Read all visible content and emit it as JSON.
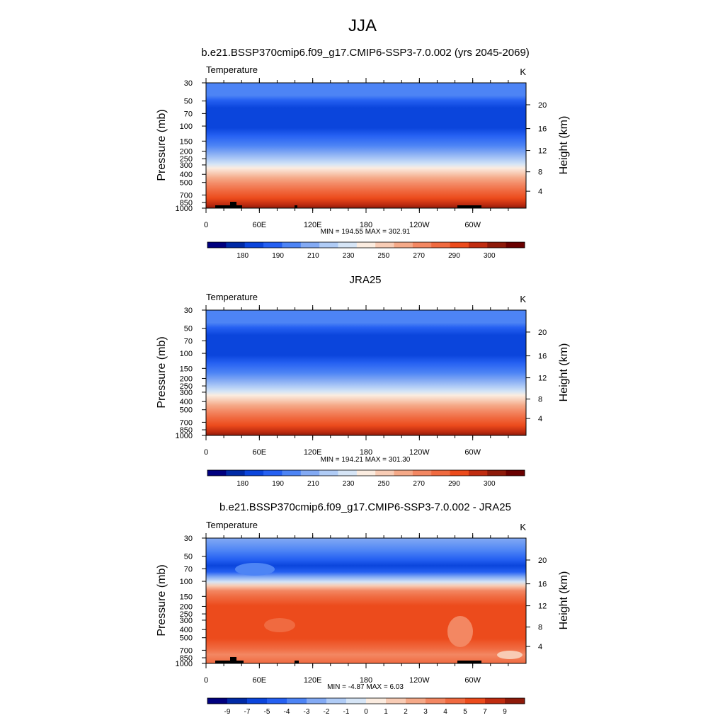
{
  "figure_title": "JJA",
  "chart_data": [
    {
      "type": "heatmap",
      "title": "b.e21.BSSP370cmip6.f09_g17.CMIP6-SSP3-7.0.002 (yrs 2045-2069)",
      "variable": "Temperature",
      "units": "K",
      "ylabel": "Pressure (mb)",
      "y2label": "Height (km)",
      "x_ticks": [
        "0",
        "60E",
        "120E",
        "180",
        "120W",
        "60W"
      ],
      "pressure_ticks": [
        "30",
        "50",
        "70",
        "100",
        "150",
        "200",
        "250",
        "300",
        "400",
        "500",
        "700",
        "850",
        "1000"
      ],
      "height_ticks": [
        "20",
        "16",
        "12",
        "8",
        "4"
      ],
      "stats": "MIN = 194.55  MAX = 302.91",
      "min": 194.55,
      "max": 302.91,
      "colorbar_labels": [
        "180",
        "190",
        "210",
        "230",
        "250",
        "270",
        "290",
        "300"
      ],
      "colorbar_colors": [
        "#00007f",
        "#002aa6",
        "#0b45dc",
        "#2560f2",
        "#4d84f5",
        "#83aaf4",
        "#b0ccf6",
        "#d6e5f6",
        "#fbece0",
        "#f8ccb5",
        "#f5a988",
        "#f38762",
        "#f06a40",
        "#ec4b1c",
        "#c02c10",
        "#8e1a0a",
        "#6a0000"
      ]
    },
    {
      "type": "heatmap",
      "title": "JRA25",
      "variable": "Temperature",
      "units": "K",
      "ylabel": "Pressure (mb)",
      "y2label": "Height (km)",
      "x_ticks": [
        "0",
        "60E",
        "120E",
        "180",
        "120W",
        "60W"
      ],
      "pressure_ticks": [
        "30",
        "50",
        "70",
        "100",
        "150",
        "200",
        "250",
        "300",
        "400",
        "500",
        "700",
        "850",
        "1000"
      ],
      "height_ticks": [
        "20",
        "16",
        "12",
        "8",
        "4"
      ],
      "stats": "MIN = 194.21  MAX = 301.30",
      "min": 194.21,
      "max": 301.3,
      "colorbar_labels": [
        "180",
        "190",
        "210",
        "230",
        "250",
        "270",
        "290",
        "300"
      ],
      "colorbar_colors": [
        "#00007f",
        "#002aa6",
        "#0b45dc",
        "#2560f2",
        "#4d84f5",
        "#83aaf4",
        "#b0ccf6",
        "#d6e5f6",
        "#fbece0",
        "#f8ccb5",
        "#f5a988",
        "#f38762",
        "#f06a40",
        "#ec4b1c",
        "#c02c10",
        "#8e1a0a",
        "#6a0000"
      ]
    },
    {
      "type": "heatmap",
      "title": "b.e21.BSSP370cmip6.f09_g17.CMIP6-SSP3-7.0.002 - JRA25",
      "variable": "Temperature",
      "units": "K",
      "ylabel": "Pressure (mb)",
      "y2label": "Height (km)",
      "x_ticks": [
        "0",
        "60E",
        "120E",
        "180",
        "120W",
        "60W"
      ],
      "pressure_ticks": [
        "30",
        "50",
        "70",
        "100",
        "150",
        "200",
        "250",
        "300",
        "400",
        "500",
        "700",
        "850",
        "1000"
      ],
      "height_ticks": [
        "20",
        "16",
        "12",
        "8",
        "4"
      ],
      "stats": "MIN =  -4.87  MAX =   6.03",
      "min": -4.87,
      "max": 6.03,
      "colorbar_labels": [
        "-9",
        "-7",
        "-5",
        "-4",
        "-3",
        "-2",
        "-1",
        "0",
        "1",
        "2",
        "3",
        "4",
        "5",
        "7",
        "9"
      ],
      "colorbar_colors": [
        "#00007f",
        "#002aa6",
        "#0b45dc",
        "#2560f2",
        "#4d84f5",
        "#83aaf4",
        "#b0ccf6",
        "#d6e5f6",
        "#fbece0",
        "#f8ccb5",
        "#f5a988",
        "#f38762",
        "#f06a40",
        "#ec4b1c",
        "#c02c10",
        "#8e1a0a"
      ]
    }
  ]
}
